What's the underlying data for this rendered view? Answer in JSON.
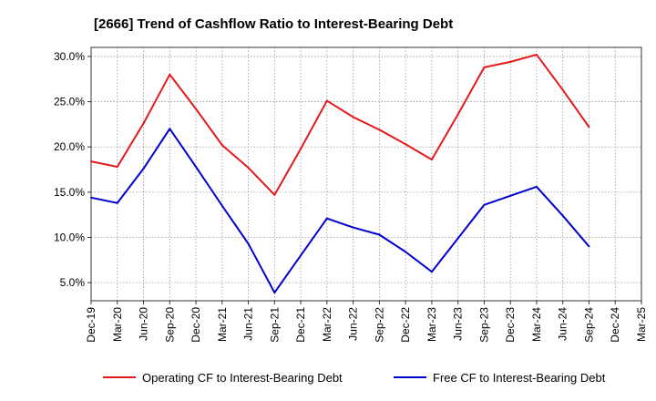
{
  "chart_data": {
    "type": "line",
    "title": "[2666]  Trend of Cashflow Ratio to Interest-Bearing Debt",
    "xlabel": "",
    "ylabel": "",
    "categories": [
      "Dec-19",
      "Mar-20",
      "Jun-20",
      "Sep-20",
      "Dec-20",
      "Mar-21",
      "Jun-21",
      "Sep-21",
      "Dec-21",
      "Mar-22",
      "Jun-22",
      "Sep-22",
      "Dec-22",
      "Mar-23",
      "Jun-23",
      "Sep-23",
      "Dec-23",
      "Mar-24",
      "Jun-24",
      "Sep-24",
      "Dec-24",
      "Mar-25"
    ],
    "y_ticks": [
      "5.0%",
      "10.0%",
      "15.0%",
      "20.0%",
      "25.0%",
      "30.0%"
    ],
    "ylim": [
      3.0,
      31.0
    ],
    "grid": true,
    "legend_position": "bottom",
    "series": [
      {
        "name": "Operating CF to Interest-Bearing Debt",
        "color": "#e31a1c",
        "values": [
          18.4,
          17.8,
          22.6,
          28.0,
          24.2,
          20.2,
          17.7,
          14.7,
          19.8,
          25.1,
          23.3,
          21.9,
          20.3,
          18.6,
          23.6,
          28.8,
          29.4,
          30.2,
          26.3,
          22.2,
          null,
          null
        ]
      },
      {
        "name": "Free CF to Interest-Bearing Debt",
        "color": "#0000cc",
        "values": [
          14.4,
          13.8,
          17.6,
          22.0,
          17.8,
          13.5,
          9.3,
          3.9,
          8.0,
          12.1,
          11.1,
          10.3,
          8.4,
          6.2,
          9.9,
          13.6,
          14.6,
          15.6,
          12.4,
          9.0,
          null,
          null
        ]
      }
    ]
  }
}
